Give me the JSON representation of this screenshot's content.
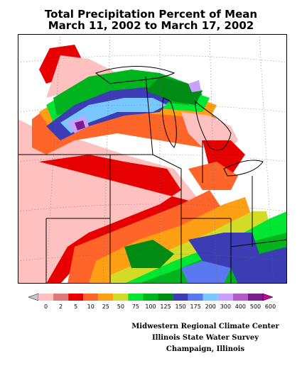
{
  "title": {
    "line1": "Total Precipitation Percent of Mean",
    "line2": "March 11, 2002 to March 17, 2002"
  },
  "legend": {
    "labels": [
      "0",
      "2",
      "5",
      "10",
      "25",
      "50",
      "75",
      "100",
      "125",
      "150",
      "175",
      "200",
      "300",
      "400",
      "500",
      "600"
    ],
    "colors": [
      "#c8c8c8",
      "#ffc0c0",
      "#e07878",
      "#e60000",
      "#ff6428",
      "#ffa014",
      "#d2dc28",
      "#00e632",
      "#00b41e",
      "#008c14",
      "#3c3cb4",
      "#5a78f0",
      "#78c8ff",
      "#c8a0ff",
      "#b45ac8",
      "#781e8c",
      "#c80096"
    ]
  },
  "credits": {
    "line1": "Midwestern Regional Climate Center",
    "line2": "Illinois State Water Survey",
    "line3": "Champaign, Illinois"
  }
}
